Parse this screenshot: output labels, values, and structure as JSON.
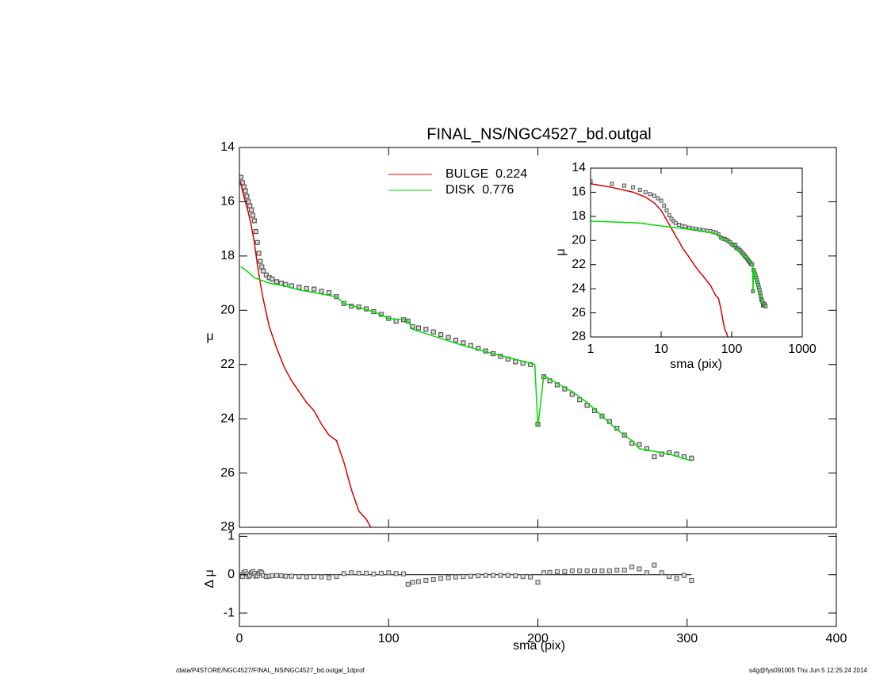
{
  "chart_data": [
    {
      "type": "line",
      "title": "FINAL_NS/NGC4527_bd.outgal",
      "ylabel": "μ",
      "ylim": [
        28,
        14
      ],
      "yticks": [
        14,
        16,
        18,
        20,
        22,
        24,
        26,
        28
      ],
      "series": [
        {
          "marker": "square",
          "color": "#555555",
          "x": [
            1,
            2,
            3,
            4,
            5,
            6,
            7,
            8,
            9,
            10,
            11,
            12,
            13,
            14,
            15,
            16,
            18,
            20,
            22,
            25,
            28,
            31,
            35,
            40,
            45,
            50,
            55,
            60,
            65,
            70,
            75,
            80,
            85,
            90,
            95,
            100,
            105,
            110,
            113,
            116,
            120,
            125,
            130,
            135,
            140,
            145,
            150,
            155,
            160,
            165,
            170,
            175,
            180,
            185,
            190,
            195,
            200,
            204,
            208,
            213,
            218,
            223,
            228,
            233,
            238,
            243,
            248,
            253,
            258,
            263,
            268,
            273,
            278,
            283,
            288,
            293,
            298,
            303
          ],
          "values": [
            15.1,
            15.3,
            15.45,
            15.6,
            15.8,
            16.0,
            16.15,
            16.3,
            16.5,
            16.7,
            17.1,
            17.5,
            17.9,
            18.2,
            18.4,
            18.55,
            18.7,
            18.8,
            18.85,
            18.95,
            19.0,
            19.05,
            19.1,
            19.15,
            19.2,
            19.22,
            19.3,
            19.35,
            19.5,
            19.75,
            19.85,
            19.88,
            19.95,
            20.05,
            20.15,
            20.3,
            20.4,
            20.35,
            20.4,
            20.6,
            20.65,
            20.7,
            20.8,
            20.9,
            21.0,
            21.1,
            21.2,
            21.3,
            21.4,
            21.5,
            21.6,
            21.7,
            21.8,
            21.9,
            21.95,
            22.0,
            24.2,
            22.45,
            22.6,
            22.75,
            22.9,
            23.1,
            23.3,
            23.5,
            23.7,
            23.9,
            24.1,
            24.35,
            24.6,
            24.9,
            24.95,
            25.1,
            25.4,
            25.3,
            25.25,
            25.3,
            25.4,
            25.45
          ]
        },
        {
          "name": "BULGE  0.224",
          "color": "#dd0000",
          "x": [
            1,
            2,
            4,
            6,
            8,
            10,
            12,
            14,
            16,
            18,
            20,
            25,
            30,
            35,
            40,
            45,
            50,
            55,
            60,
            65,
            70,
            75,
            80,
            85,
            88
          ],
          "values": [
            15.3,
            15.6,
            16.0,
            16.4,
            16.9,
            17.5,
            18.3,
            19.0,
            19.6,
            20.1,
            20.6,
            21.4,
            22.1,
            22.6,
            23.0,
            23.4,
            23.7,
            24.2,
            24.6,
            24.8,
            25.6,
            26.6,
            27.4,
            27.7,
            28.0
          ]
        },
        {
          "name": "DISK  0.776",
          "color": "#00dd00",
          "x": [
            1,
            5,
            10,
            20,
            30,
            40,
            50,
            60,
            65,
            70,
            80,
            90,
            100,
            110,
            113,
            116,
            130,
            150,
            170,
            195,
            198,
            200,
            204,
            213,
            223,
            233,
            243,
            253,
            263,
            268,
            278,
            288,
            303
          ],
          "values": [
            18.4,
            18.55,
            18.8,
            19.0,
            19.1,
            19.25,
            19.35,
            19.45,
            19.5,
            19.75,
            19.9,
            20.05,
            20.3,
            20.35,
            20.4,
            20.7,
            20.95,
            21.3,
            21.6,
            21.95,
            22.0,
            24.3,
            22.4,
            22.7,
            23.0,
            23.4,
            23.9,
            24.4,
            24.8,
            25.1,
            25.2,
            25.3,
            25.55
          ]
        }
      ]
    },
    {
      "type": "scatter",
      "xlabel": "sma (pix)",
      "ylabel": "Δ μ",
      "xlim": [
        0,
        400
      ],
      "xticks": [
        0,
        100,
        200,
        300,
        400
      ],
      "ylim": [
        -1.35,
        1.07
      ],
      "yticks": [
        -1,
        0,
        1
      ],
      "reference_line": 0,
      "color": "#555555",
      "x": [
        1,
        2,
        3,
        4,
        5,
        6,
        7,
        8,
        9,
        10,
        11,
        12,
        13,
        14,
        15,
        16,
        18,
        20,
        22,
        25,
        28,
        31,
        35,
        40,
        45,
        50,
        55,
        60,
        65,
        70,
        75,
        80,
        85,
        90,
        95,
        100,
        105,
        110,
        113,
        116,
        120,
        125,
        130,
        135,
        140,
        145,
        150,
        155,
        160,
        165,
        170,
        175,
        180,
        185,
        190,
        195,
        200,
        204,
        208,
        213,
        218,
        223,
        228,
        233,
        238,
        243,
        248,
        253,
        258,
        263,
        268,
        273,
        278,
        283,
        288,
        293,
        298,
        303
      ],
      "values": [
        0.0,
        -0.05,
        0.05,
        0.08,
        0.02,
        -0.05,
        -0.02,
        0.05,
        0.08,
        0.03,
        -0.04,
        -0.03,
        0.04,
        0.08,
        0.05,
        -0.02,
        -0.05,
        -0.04,
        -0.03,
        -0.02,
        -0.03,
        -0.04,
        -0.04,
        -0.05,
        -0.06,
        -0.05,
        -0.06,
        -0.08,
        -0.05,
        0.03,
        0.05,
        0.04,
        0.04,
        0.02,
        0.04,
        0.05,
        0.03,
        0.02,
        -0.25,
        -0.2,
        -0.18,
        -0.15,
        -0.13,
        -0.1,
        -0.08,
        -0.06,
        -0.05,
        -0.04,
        -0.03,
        -0.02,
        -0.02,
        -0.02,
        -0.02,
        -0.03,
        -0.05,
        -0.06,
        -0.2,
        0.05,
        0.06,
        0.08,
        0.08,
        0.1,
        0.1,
        0.1,
        0.1,
        0.1,
        0.1,
        0.12,
        0.12,
        0.2,
        0.15,
        0.05,
        0.25,
        0.05,
        -0.05,
        -0.1,
        -0.02,
        -0.15
      ]
    },
    {
      "type": "line",
      "xlabel": "sma (pix)",
      "ylabel": "μ",
      "log_x": true,
      "xlim": [
        1,
        1000
      ],
      "xticks": [
        1,
        10,
        100,
        1000
      ],
      "ylim": [
        28,
        14
      ],
      "yticks": [
        14,
        16,
        18,
        20,
        22,
        24,
        26,
        28
      ]
    }
  ],
  "footer": {
    "left": "/data/P4STORE/NGC4527/FINAL_NS/NGC4527_bd.outgal_1dprof",
    "right": "s4g@fys091005  Thu Jun  5 12:25:24 2014"
  }
}
